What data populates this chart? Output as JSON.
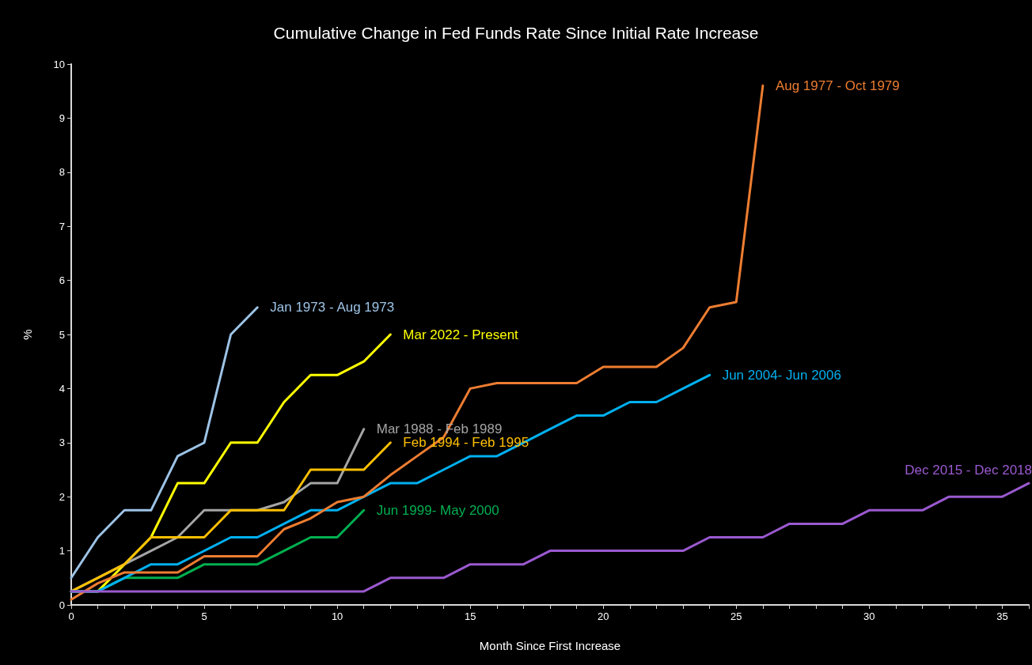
{
  "chart_data": {
    "type": "line",
    "title": "Cumulative Change in Fed Funds Rate Since Initial Rate Increase",
    "xlabel": "Month Since First Increase",
    "ylabel": "%",
    "xlim": [
      0,
      36
    ],
    "xticks": [
      0,
      5,
      10,
      15,
      20,
      25,
      30,
      35
    ],
    "ylim": [
      0,
      10
    ],
    "yticks": [
      0,
      1,
      2,
      3,
      4,
      5,
      6,
      7,
      8,
      9,
      10
    ],
    "grid": false,
    "legend": false,
    "marker": "none",
    "line_style": "solid",
    "series": [
      {
        "name": "Jan 1973 - Aug 1973",
        "color": "#9dc3e6",
        "x": [
          0,
          1,
          2,
          3,
          4,
          5,
          6,
          7
        ],
        "values": [
          0.5,
          1.25,
          1.75,
          1.75,
          2.75,
          3,
          5,
          5.5
        ]
      },
      {
        "name": "Mar 2022 - Present",
        "color": "#ffff00",
        "x": [
          0,
          1,
          2,
          3,
          4,
          5,
          6,
          7,
          8,
          9,
          10,
          11,
          12
        ],
        "values": [
          0.25,
          0.25,
          0.75,
          1.25,
          2.25,
          2.25,
          3,
          3,
          3.75,
          4.25,
          4.25,
          4.5,
          5
        ]
      },
      {
        "name": "Mar 1988 - Feb 1989",
        "color": "#a5a5a5",
        "x": [
          0,
          1,
          2,
          3,
          4,
          5,
          6,
          7,
          8,
          9,
          10,
          11
        ],
        "values": [
          0.25,
          0.5,
          0.75,
          1,
          1.25,
          1.75,
          1.75,
          1.75,
          1.9,
          2.25,
          2.25,
          3.25
        ]
      },
      {
        "name": "Feb 1994 - Feb 1995",
        "color": "#ffc000",
        "x": [
          0,
          1,
          2,
          3,
          4,
          5,
          6,
          7,
          8,
          9,
          10,
          11,
          12
        ],
        "values": [
          0.25,
          0.5,
          0.75,
          1.25,
          1.25,
          1.25,
          1.75,
          1.75,
          1.75,
          2.5,
          2.5,
          2.5,
          3
        ]
      },
      {
        "name": "Jun 1999- May 2000",
        "color": "#00b050",
        "x": [
          0,
          1,
          2,
          3,
          4,
          5,
          6,
          7,
          8,
          9,
          10,
          11
        ],
        "values": [
          0.25,
          0.25,
          0.5,
          0.5,
          0.5,
          0.75,
          0.75,
          0.75,
          1,
          1.25,
          1.25,
          1.75
        ]
      },
      {
        "name": "Jun 2004- Jun 2006",
        "color": "#00b0f0",
        "x": [
          0,
          1,
          2,
          3,
          4,
          5,
          6,
          7,
          8,
          9,
          10,
          11,
          12,
          13,
          14,
          15,
          16,
          17,
          18,
          19,
          20,
          21,
          22,
          23,
          24
        ],
        "values": [
          0.25,
          0.25,
          0.5,
          0.75,
          0.75,
          1,
          1.25,
          1.25,
          1.5,
          1.75,
          1.75,
          2,
          2.25,
          2.25,
          2.5,
          2.75,
          2.75,
          3,
          3.25,
          3.5,
          3.5,
          3.75,
          3.75,
          4,
          4.25
        ]
      },
      {
        "name": "Aug 1977 - Oct 1979",
        "color": "#ed7d31",
        "x": [
          0,
          1,
          2,
          3,
          4,
          5,
          6,
          7,
          8,
          9,
          10,
          11,
          12,
          13,
          14,
          15,
          16,
          17,
          18,
          19,
          20,
          21,
          22,
          23,
          24,
          25,
          26
        ],
        "values": [
          0.1,
          0.4,
          0.6,
          0.6,
          0.6,
          0.9,
          0.9,
          0.9,
          1.4,
          1.6,
          1.9,
          2,
          2.4,
          2.75,
          3.1,
          4,
          4.1,
          4.1,
          4.1,
          4.1,
          4.4,
          4.4,
          4.4,
          4.75,
          5.5,
          5.6,
          9.6
        ]
      },
      {
        "name": "Dec 2015 - Dec 2018",
        "color": "#9b59d0",
        "x": [
          0,
          1,
          2,
          3,
          4,
          5,
          6,
          7,
          8,
          9,
          10,
          11,
          12,
          13,
          14,
          15,
          16,
          17,
          18,
          19,
          20,
          21,
          22,
          23,
          24,
          25,
          26,
          27,
          28,
          29,
          30,
          31,
          32,
          33,
          34,
          35,
          36
        ],
        "values": [
          0.25,
          0.25,
          0.25,
          0.25,
          0.25,
          0.25,
          0.25,
          0.25,
          0.25,
          0.25,
          0.25,
          0.25,
          0.5,
          0.5,
          0.5,
          0.75,
          0.75,
          0.75,
          1,
          1,
          1,
          1,
          1,
          1,
          1.25,
          1.25,
          1.25,
          1.5,
          1.5,
          1.5,
          1.75,
          1.75,
          1.75,
          2,
          2,
          2,
          2.25
        ]
      }
    ]
  }
}
